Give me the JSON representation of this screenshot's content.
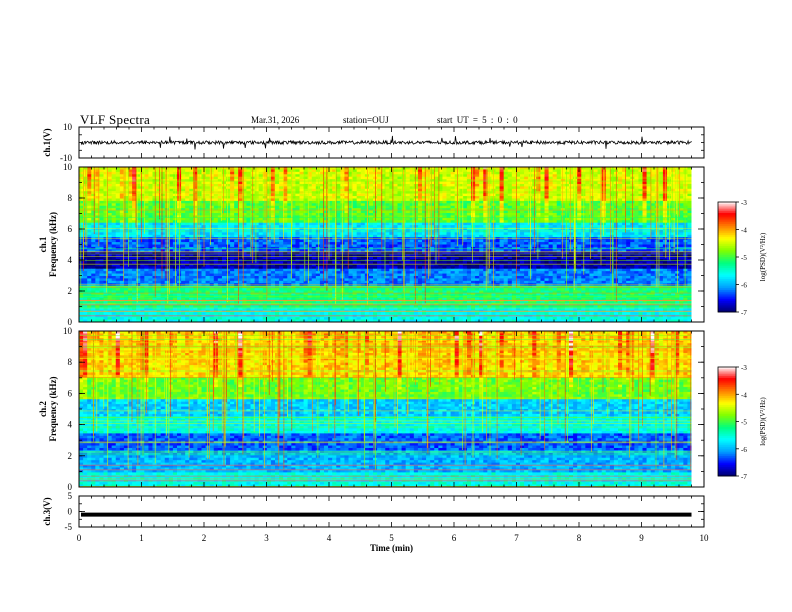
{
  "header": {
    "title": "VLF Spectra",
    "date": "Mar.31, 2026",
    "station": "station=OUJ",
    "start": "start  UT =  5 : 0  : 0"
  },
  "colors": {
    "background": "#ffffff",
    "axis": "#000000",
    "waveform": "#000000"
  },
  "chart_data": [
    {
      "type": "line",
      "name": "ch1-waveform",
      "ylabel": "ch.1(V)",
      "ylim": [
        -10,
        10
      ],
      "yticks": [
        "10",
        "-10"
      ],
      "xlim": [
        0,
        9.8
      ],
      "signal": "noise centered on 0 V, amplitude about 1 V with spikes up to about 4 V"
    },
    {
      "type": "heatmap",
      "name": "ch1-spectrogram",
      "ylabel": "ch.1\nFrequency (kHz)",
      "ylabel_lines": [
        "ch.1",
        "Frequency (kHz)"
      ],
      "ylim": [
        0,
        10
      ],
      "yticks": [
        "10",
        "8",
        "6",
        "4",
        "2",
        "0"
      ],
      "xlim": [
        0,
        9.8
      ],
      "colorbar": {
        "label": "log(PSD)(V²/Hz)",
        "range": [
          -7,
          -3
        ],
        "ticks": [
          "-3",
          "-4",
          "-5",
          "-6",
          "-7"
        ],
        "colormap": [
          "#00006e",
          "#0000ff",
          "#00a0ff",
          "#00ffff",
          "#00ff7f",
          "#7fff00",
          "#ffff00",
          "#ff8000",
          "#ff0000",
          "#ffffff"
        ]
      },
      "bands": [
        {
          "fmin": 0,
          "fmax": 1,
          "log_psd": -5.6
        },
        {
          "fmin": 1,
          "fmax": 2.4,
          "log_psd": -5.2
        },
        {
          "fmin": 2.4,
          "fmax": 3.4,
          "log_psd": -6.2
        },
        {
          "fmin": 3.4,
          "fmax": 4.6,
          "log_psd": -6.8
        },
        {
          "fmin": 4.6,
          "fmax": 5.4,
          "log_psd": -6.3
        },
        {
          "fmin": 5.4,
          "fmax": 6.4,
          "log_psd": -5.8
        },
        {
          "fmin": 6.4,
          "fmax": 7.8,
          "log_psd": -5.0
        },
        {
          "fmin": 7.8,
          "fmax": 10,
          "log_psd": -4.6
        }
      ]
    },
    {
      "type": "heatmap",
      "name": "ch2-spectrogram",
      "ylabel": "ch.2\nFrequency (kHz)",
      "ylabel_lines": [
        "ch.2",
        "Frequency (kHz)"
      ],
      "ylim": [
        0,
        10
      ],
      "yticks": [
        "10",
        "8",
        "6",
        "4",
        "2",
        "0"
      ],
      "xlim": [
        0,
        9.8
      ],
      "colorbar": {
        "label": "log(PSD)(V²/Hz)",
        "range": [
          -7,
          -3
        ],
        "ticks": [
          "-3",
          "-4",
          "-5",
          "-6",
          "-7"
        ],
        "colormap": [
          "#00006e",
          "#0000ff",
          "#00a0ff",
          "#00ffff",
          "#00ff7f",
          "#7fff00",
          "#ffff00",
          "#ff8000",
          "#ff0000",
          "#ffffff"
        ]
      },
      "bands": [
        {
          "fmin": 0,
          "fmax": 1,
          "log_psd": -5.6
        },
        {
          "fmin": 1,
          "fmax": 2.4,
          "log_psd": -6.0
        },
        {
          "fmin": 2.4,
          "fmax": 3.4,
          "log_psd": -6.3
        },
        {
          "fmin": 3.4,
          "fmax": 4.6,
          "log_psd": -5.6
        },
        {
          "fmin": 4.6,
          "fmax": 5.6,
          "log_psd": -5.9
        },
        {
          "fmin": 5.6,
          "fmax": 7.0,
          "log_psd": -4.9
        },
        {
          "fmin": 7.0,
          "fmax": 10,
          "log_psd": -4.3
        }
      ]
    },
    {
      "type": "line",
      "name": "ch3-waveform",
      "ylabel": "ch.3(V)",
      "ylim": [
        -5,
        5
      ],
      "yticks": [
        "5",
        "0",
        "-5"
      ],
      "xlim": [
        0,
        9.8
      ],
      "signal": "flat line at -1 V"
    }
  ],
  "xaxis": {
    "label": "Time (min)",
    "range": [
      0,
      10
    ],
    "ticks": [
      "0",
      "1",
      "2",
      "3",
      "4",
      "5",
      "6",
      "7",
      "8",
      "9",
      "10"
    ]
  }
}
